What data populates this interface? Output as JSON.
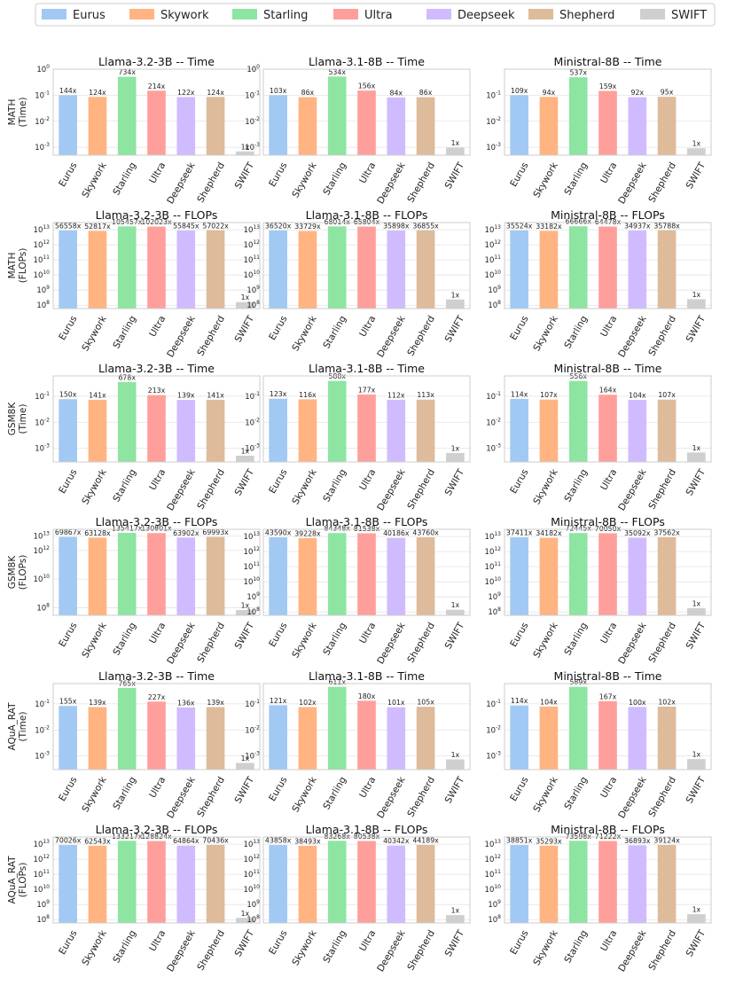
{
  "legend": {
    "position": "top-center",
    "entries": [
      {
        "name": "Eurus",
        "color": "#a1c9f4"
      },
      {
        "name": "Skywork",
        "color": "#ffb482"
      },
      {
        "name": "Starling",
        "color": "#8de5a1"
      },
      {
        "name": "Ultra",
        "color": "#ff9f9b"
      },
      {
        "name": "Deepseek",
        "color": "#d0bbff"
      },
      {
        "name": "Shepherd",
        "color": "#debb9b"
      },
      {
        "name": "SWIFT",
        "color": "#cfcfcf"
      }
    ]
  },
  "row_labels": [
    [
      "MATH",
      "(Time)"
    ],
    [
      "MATH",
      "(FLOPs)"
    ],
    [
      "GSM8K",
      "(Time)"
    ],
    [
      "GSM8K",
      "(FLOPs)"
    ],
    [
      "AQuA_RAT",
      "(Time)"
    ],
    [
      "AQuA_RAT",
      "(FLOPs)"
    ]
  ],
  "chart_data": [
    {
      "type": "bar",
      "title": "Llama-3.2-3B -- Time",
      "ylabel": "MATH (Time)",
      "yscale": "log",
      "ylim": [
        0.0005,
        1
      ],
      "yticks": [
        0.001,
        0.01,
        0.1,
        1
      ],
      "ytick_labels": [
        [
          "10",
          "-3"
        ],
        [
          "10",
          "-2"
        ],
        [
          "10",
          "-1"
        ],
        [
          "10",
          "0"
        ]
      ],
      "categories": [
        "Eurus",
        "Skywork",
        "Starling",
        "Ultra",
        "Deepseek",
        "Shepherd",
        "SWIFT"
      ],
      "values": [
        0.1,
        0.086,
        0.51,
        0.149,
        0.085,
        0.086,
        0.000695
      ],
      "data_labels": [
        "144x",
        "124x",
        "734x",
        "214x",
        "122x",
        "124x",
        "1x"
      ],
      "grid": true
    },
    {
      "type": "bar",
      "title": "Llama-3.1-8B -- Time",
      "yscale": "log",
      "ylim": [
        0.0005,
        1
      ],
      "yticks": [
        0.001,
        0.01,
        0.1,
        1
      ],
      "ytick_labels": [
        [
          "10",
          "-3"
        ],
        [
          "10",
          "-2"
        ],
        [
          "10",
          "-1"
        ],
        [
          "10",
          "0"
        ]
      ],
      "categories": [
        "Eurus",
        "Skywork",
        "Starling",
        "Ultra",
        "Deepseek",
        "Shepherd",
        "SWIFT"
      ],
      "values": [
        0.1,
        0.084,
        0.52,
        0.151,
        0.082,
        0.084,
        0.00097
      ],
      "data_labels": [
        "103x",
        "86x",
        "534x",
        "156x",
        "84x",
        "86x",
        "1x"
      ],
      "grid": true
    },
    {
      "type": "bar",
      "title": "Ministral-8B -- Time",
      "yscale": "log",
      "ylim": [
        0.0005,
        1
      ],
      "yticks": [
        0.001,
        0.01,
        0.1
      ],
      "ytick_labels": [
        [
          "10",
          "-3"
        ],
        [
          "10",
          "-2"
        ],
        [
          "10",
          "-1"
        ]
      ],
      "categories": [
        "Eurus",
        "Skywork",
        "Starling",
        "Ultra",
        "Deepseek",
        "Shepherd",
        "SWIFT"
      ],
      "values": [
        0.1,
        0.086,
        0.49,
        0.146,
        0.084,
        0.087,
        0.00092
      ],
      "data_labels": [
        "109x",
        "94x",
        "537x",
        "159x",
        "92x",
        "95x",
        "1x"
      ],
      "grid": true
    },
    {
      "type": "bar",
      "title": "Llama-3.2-3B -- FLOPs",
      "ylabel": "MATH (FLOPs)",
      "yscale": "log",
      "ylim": [
        60000000,
        30000000000000
      ],
      "yticks": [
        100000000,
        1000000000,
        10000000000,
        100000000000,
        1000000000000,
        10000000000000
      ],
      "ytick_labels": [
        [
          "10",
          "8"
        ],
        [
          "10",
          "9"
        ],
        [
          "10",
          "10"
        ],
        [
          "10",
          "11"
        ],
        [
          "10",
          "12"
        ],
        [
          "10",
          "13"
        ]
      ],
      "categories": [
        "Eurus",
        "Skywork",
        "Starling",
        "Ultra",
        "Deepseek",
        "Shepherd",
        "SWIFT"
      ],
      "values": [
        9000000000000,
        8400000000000,
        16800000000000,
        16200000000000,
        8900000000000,
        9100000000000,
        160000000
      ],
      "data_labels": [
        "56558x",
        "52817x",
        "105457x",
        "102023x",
        "55845x",
        "57022x",
        "1x"
      ],
      "grid": true
    },
    {
      "type": "bar",
      "title": "Llama-3.1-8B -- FLOPs",
      "yscale": "log",
      "ylim": [
        60000000,
        30000000000000
      ],
      "yticks": [
        100000000,
        1000000000,
        10000000000,
        100000000000,
        1000000000000,
        10000000000000
      ],
      "ytick_labels": [
        [
          "10",
          "8"
        ],
        [
          "10",
          "9"
        ],
        [
          "10",
          "10"
        ],
        [
          "10",
          "11"
        ],
        [
          "10",
          "12"
        ],
        [
          "10",
          "13"
        ]
      ],
      "categories": [
        "Eurus",
        "Skywork",
        "Starling",
        "Ultra",
        "Deepseek",
        "Shepherd",
        "SWIFT"
      ],
      "values": [
        9000000000000,
        8300000000000,
        16700000000000,
        16200000000000,
        8800000000000,
        9100000000000,
        240000000
      ],
      "data_labels": [
        "36520x",
        "33729x",
        "68014x",
        "65804x",
        "35898x",
        "36855x",
        "1x"
      ],
      "grid": true
    },
    {
      "type": "bar",
      "title": "Ministral-8B -- FLOPs",
      "yscale": "log",
      "ylim": [
        60000000,
        30000000000000
      ],
      "yticks": [
        100000000,
        1000000000,
        10000000000,
        100000000000,
        1000000000000,
        10000000000000
      ],
      "ytick_labels": [
        [
          "10",
          "8"
        ],
        [
          "10",
          "9"
        ],
        [
          "10",
          "10"
        ],
        [
          "10",
          "11"
        ],
        [
          "10",
          "12"
        ],
        [
          "10",
          "13"
        ]
      ],
      "categories": [
        "Eurus",
        "Skywork",
        "Starling",
        "Ultra",
        "Deepseek",
        "Shepherd",
        "SWIFT"
      ],
      "values": [
        9000000000000,
        8400000000000,
        16900000000000,
        16300000000000,
        8900000000000,
        9100000000000,
        250000000
      ],
      "data_labels": [
        "35524x",
        "33182x",
        "66666x",
        "64478x",
        "34937x",
        "35788x",
        "1x"
      ],
      "grid": true
    },
    {
      "type": "bar",
      "title": "Llama-3.2-3B -- Time",
      "ylabel": "GSM8K (Time)",
      "yscale": "log",
      "ylim": [
        0.0003,
        0.6
      ],
      "yticks": [
        0.001,
        0.01,
        0.1
      ],
      "ytick_labels": [
        [
          "10",
          "-3"
        ],
        [
          "10",
          "-2"
        ],
        [
          "10",
          "-1"
        ]
      ],
      "categories": [
        "Eurus",
        "Skywork",
        "Starling",
        "Ultra",
        "Deepseek",
        "Shepherd",
        "SWIFT"
      ],
      "values": [
        0.077,
        0.073,
        0.35,
        0.11,
        0.072,
        0.073,
        0.00052
      ],
      "data_labels": [
        "150x",
        "141x",
        "678x",
        "213x",
        "139x",
        "141x",
        "1x"
      ],
      "grid": true
    },
    {
      "type": "bar",
      "title": "Llama-3.1-8B -- Time",
      "yscale": "log",
      "ylim": [
        0.0003,
        0.6
      ],
      "yticks": [
        0.001,
        0.01,
        0.1
      ],
      "ytick_labels": [
        [
          "10",
          "-3"
        ],
        [
          "10",
          "-2"
        ],
        [
          "10",
          "-1"
        ]
      ],
      "categories": [
        "Eurus",
        "Skywork",
        "Starling",
        "Ultra",
        "Deepseek",
        "Shepherd",
        "SWIFT"
      ],
      "values": [
        0.08,
        0.076,
        0.385,
        0.116,
        0.073,
        0.074,
        0.00066
      ],
      "data_labels": [
        "123x",
        "116x",
        "588x",
        "177x",
        "112x",
        "113x",
        "1x"
      ],
      "grid": true
    },
    {
      "type": "bar",
      "title": "Ministral-8B -- Time",
      "yscale": "log",
      "ylim": [
        0.0003,
        0.6
      ],
      "yticks": [
        0.001,
        0.01,
        0.1
      ],
      "ytick_labels": [
        [
          "10",
          "-3"
        ],
        [
          "10",
          "-2"
        ],
        [
          "10",
          "-1"
        ]
      ],
      "categories": [
        "Eurus",
        "Skywork",
        "Starling",
        "Ultra",
        "Deepseek",
        "Shepherd",
        "SWIFT"
      ],
      "values": [
        0.079,
        0.074,
        0.385,
        0.114,
        0.072,
        0.074,
        0.00069
      ],
      "data_labels": [
        "114x",
        "107x",
        "556x",
        "164x",
        "104x",
        "107x",
        "1x"
      ],
      "grid": true
    },
    {
      "type": "bar",
      "title": "Llama-3.2-3B -- FLOPs",
      "ylabel": "GSM8K (FLOPs)",
      "yscale": "log",
      "ylim": [
        30000000,
        30000000000000
      ],
      "yticks": [
        100000000,
        10000000000,
        1000000000000,
        10000000000000
      ],
      "ytick_labels": [
        [
          "10",
          "8"
        ],
        [
          "10",
          "10"
        ],
        [
          "10",
          "12"
        ],
        [
          "10",
          "13"
        ]
      ],
      "categories": [
        "Eurus",
        "Skywork",
        "Starling",
        "Ultra",
        "Deepseek",
        "Shepherd",
        "SWIFT"
      ],
      "values": [
        8800000000000,
        7900000000000,
        17000000000000,
        16400000000000,
        8000000000000,
        8800000000000,
        70000000
      ],
      "data_labels": [
        "69867x",
        "63128x",
        "135417x",
        "130801x",
        "63902x",
        "69993x",
        "1x"
      ],
      "grid": true
    },
    {
      "type": "bar",
      "title": "Llama-3.1-8B -- FLOPs",
      "yscale": "log",
      "ylim": [
        60000000,
        30000000000000
      ],
      "yticks": [
        100000000,
        1000000000,
        10000000000,
        100000000000,
        1000000000000,
        10000000000000
      ],
      "ytick_labels": [
        [
          "10",
          "8"
        ],
        [
          "10",
          "9"
        ],
        [
          "10",
          "10"
        ],
        [
          "10",
          "11"
        ],
        [
          "10",
          "12"
        ],
        [
          "10",
          "13"
        ]
      ],
      "categories": [
        "Eurus",
        "Skywork",
        "Starling",
        "Ultra",
        "Deepseek",
        "Shepherd",
        "SWIFT"
      ],
      "values": [
        8800000000000,
        7900000000000,
        17000000000000,
        16400000000000,
        8100000000000,
        8800000000000,
        140000000
      ],
      "data_labels": [
        "43590x",
        "39228x",
        "84348x",
        "81538x",
        "40186x",
        "43760x",
        "1x"
      ],
      "grid": true
    },
    {
      "type": "bar",
      "title": "Ministral-8B -- FLOPs",
      "yscale": "log",
      "ylim": [
        60000000,
        30000000000000
      ],
      "yticks": [
        100000000,
        1000000000,
        10000000000,
        100000000000,
        1000000000000,
        10000000000000
      ],
      "ytick_labels": [
        [
          "10",
          "8"
        ],
        [
          "10",
          "9"
        ],
        [
          "10",
          "10"
        ],
        [
          "10",
          "11"
        ],
        [
          "10",
          "12"
        ],
        [
          "10",
          "13"
        ]
      ],
      "categories": [
        "Eurus",
        "Skywork",
        "Starling",
        "Ultra",
        "Deepseek",
        "Shepherd",
        "SWIFT"
      ],
      "values": [
        8800000000000,
        8200000000000,
        17000000000000,
        16500000000000,
        8300000000000,
        8900000000000,
        180000000
      ],
      "data_labels": [
        "37411x",
        "34182x",
        "72445x",
        "70050x",
        "35092x",
        "37562x",
        "1x"
      ],
      "grid": true
    },
    {
      "type": "bar",
      "title": "Llama-3.2-3B -- Time",
      "ylabel": "AQuA_RAT (Time)",
      "yscale": "log",
      "ylim": [
        0.0003,
        0.6
      ],
      "yticks": [
        0.001,
        0.01,
        0.1
      ],
      "ytick_labels": [
        [
          "10",
          "-3"
        ],
        [
          "10",
          "-2"
        ],
        [
          "10",
          "-1"
        ]
      ],
      "categories": [
        "Eurus",
        "Skywork",
        "Starling",
        "Ultra",
        "Deepseek",
        "Shepherd",
        "SWIFT"
      ],
      "values": [
        0.083,
        0.075,
        0.41,
        0.122,
        0.073,
        0.075,
        0.00054
      ],
      "data_labels": [
        "155x",
        "139x",
        "765x",
        "227x",
        "136x",
        "139x",
        "1x"
      ],
      "grid": true
    },
    {
      "type": "bar",
      "title": "Llama-3.1-8B -- Time",
      "yscale": "log",
      "ylim": [
        0.0003,
        0.6
      ],
      "yticks": [
        0.001,
        0.01,
        0.1
      ],
      "ytick_labels": [
        [
          "10",
          "-3"
        ],
        [
          "10",
          "-2"
        ],
        [
          "10",
          "-1"
        ]
      ],
      "categories": [
        "Eurus",
        "Skywork",
        "Starling",
        "Ultra",
        "Deepseek",
        "Shepherd",
        "SWIFT"
      ],
      "values": [
        0.089,
        0.075,
        0.45,
        0.132,
        0.074,
        0.077,
        0.00074
      ],
      "data_labels": [
        "121x",
        "102x",
        "611x",
        "180x",
        "101x",
        "105x",
        "1x"
      ],
      "grid": true
    },
    {
      "type": "bar",
      "title": "Ministral-8B -- Time",
      "yscale": "log",
      "ylim": [
        0.0003,
        0.6
      ],
      "yticks": [
        0.001,
        0.01,
        0.1
      ],
      "ytick_labels": [
        [
          "10",
          "-3"
        ],
        [
          "10",
          "-2"
        ],
        [
          "10",
          "-1"
        ]
      ],
      "categories": [
        "Eurus",
        "Skywork",
        "Starling",
        "Ultra",
        "Deepseek",
        "Shepherd",
        "SWIFT"
      ],
      "values": [
        0.087,
        0.079,
        0.45,
        0.127,
        0.076,
        0.078,
        0.00076
      ],
      "data_labels": [
        "114x",
        "104x",
        "589x",
        "167x",
        "100x",
        "102x",
        "1x"
      ],
      "grid": true
    },
    {
      "type": "bar",
      "title": "Llama-3.2-3B -- FLOPs",
      "ylabel": "AQuA_RAT (FLOPs)",
      "yscale": "log",
      "ylim": [
        60000000,
        30000000000000
      ],
      "yticks": [
        100000000,
        1000000000,
        10000000000,
        100000000000,
        1000000000000,
        10000000000000
      ],
      "ytick_labels": [
        [
          "10",
          "8"
        ],
        [
          "10",
          "9"
        ],
        [
          "10",
          "10"
        ],
        [
          "10",
          "11"
        ],
        [
          "10",
          "12"
        ],
        [
          "10",
          "13"
        ]
      ],
      "categories": [
        "Eurus",
        "Skywork",
        "Starling",
        "Ultra",
        "Deepseek",
        "Shepherd",
        "SWIFT"
      ],
      "values": [
        8800000000000,
        7900000000000,
        16800000000000,
        16200000000000,
        8100000000000,
        8900000000000,
        130000000
      ],
      "data_labels": [
        "70026x",
        "62543x",
        "133217x",
        "128824x",
        "64864x",
        "70436x",
        "1x"
      ],
      "grid": true
    },
    {
      "type": "bar",
      "title": "Llama-3.1-8B -- FLOPs",
      "yscale": "log",
      "ylim": [
        60000000,
        30000000000000
      ],
      "yticks": [
        100000000,
        1000000000,
        10000000000,
        100000000000,
        1000000000000,
        10000000000000
      ],
      "ytick_labels": [
        [
          "10",
          "8"
        ],
        [
          "10",
          "9"
        ],
        [
          "10",
          "10"
        ],
        [
          "10",
          "11"
        ],
        [
          "10",
          "12"
        ],
        [
          "10",
          "13"
        ]
      ],
      "categories": [
        "Eurus",
        "Skywork",
        "Starling",
        "Ultra",
        "Deepseek",
        "Shepherd",
        "SWIFT"
      ],
      "values": [
        8800000000000,
        7800000000000,
        16700000000000,
        16200000000000,
        8100000000000,
        8900000000000,
        200000000
      ],
      "data_labels": [
        "43858x",
        "38493x",
        "83268x",
        "80538x",
        "40342x",
        "44189x",
        "1x"
      ],
      "grid": true
    },
    {
      "type": "bar",
      "title": "Ministral-8B -- FLOPs",
      "yscale": "log",
      "ylim": [
        60000000,
        30000000000000
      ],
      "yticks": [
        100000000,
        1000000000,
        10000000000,
        100000000000,
        1000000000000,
        10000000000000
      ],
      "ytick_labels": [
        [
          "10",
          "8"
        ],
        [
          "10",
          "9"
        ],
        [
          "10",
          "10"
        ],
        [
          "10",
          "11"
        ],
        [
          "10",
          "12"
        ],
        [
          "10",
          "13"
        ]
      ],
      "categories": [
        "Eurus",
        "Skywork",
        "Starling",
        "Ultra",
        "Deepseek",
        "Shepherd",
        "SWIFT"
      ],
      "values": [
        8800000000000,
        8000000000000,
        16800000000000,
        16300000000000,
        8400000000000,
        8900000000000,
        230000000
      ],
      "data_labels": [
        "38851x",
        "35293x",
        "73598x",
        "71222x",
        "36893x",
        "39124x",
        "1x"
      ],
      "grid": true
    }
  ]
}
